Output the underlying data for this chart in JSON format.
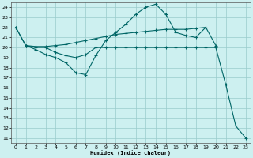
{
  "xlabel": "Humidex (Indice chaleur)",
  "bg_color": "#cdf0f0",
  "grid_color": "#99cccc",
  "line_color": "#006666",
  "xlim": [
    -0.5,
    23.5
  ],
  "ylim": [
    10.5,
    24.5
  ],
  "yticks": [
    11,
    12,
    13,
    14,
    15,
    16,
    17,
    18,
    19,
    20,
    21,
    22,
    23,
    24
  ],
  "xticks": [
    0,
    1,
    2,
    3,
    4,
    5,
    6,
    7,
    8,
    9,
    10,
    11,
    12,
    13,
    14,
    15,
    16,
    17,
    18,
    19,
    20,
    21,
    22,
    23
  ],
  "lines": [
    {
      "x": [
        0,
        1,
        2,
        3,
        4,
        5,
        6,
        7,
        8,
        9,
        10,
        11,
        12,
        13,
        14,
        15,
        16,
        17,
        18,
        19,
        20
      ],
      "y": [
        22,
        20.2,
        19.8,
        19.3,
        19.0,
        18.5,
        17.5,
        17.3,
        19.2,
        20.7,
        21.5,
        22.3,
        23.3,
        24.0,
        24.3,
        23.3,
        21.5,
        21.2,
        21.0,
        22.0,
        20.2
      ]
    },
    {
      "x": [
        0,
        1,
        2,
        3,
        4,
        5,
        6,
        7,
        8,
        9,
        10,
        11,
        12,
        13,
        14,
        15,
        16,
        17,
        18,
        19,
        20,
        21,
        22,
        23
      ],
      "y": [
        22,
        20.2,
        20.0,
        20.0,
        19.5,
        19.2,
        19.0,
        19.3,
        20.0,
        20.0,
        20.0,
        20.0,
        20.0,
        20.0,
        20.0,
        20.0,
        20.0,
        20.0,
        20.0,
        20.0,
        20.0,
        16.3,
        12.2,
        11.0
      ]
    },
    {
      "x": [
        1,
        2,
        3,
        4,
        5,
        6,
        7,
        8,
        9,
        10,
        11,
        12,
        13,
        14,
        15,
        16,
        17,
        18,
        19
      ],
      "y": [
        20.2,
        20.1,
        20.1,
        20.2,
        20.3,
        20.5,
        20.7,
        20.9,
        21.1,
        21.3,
        21.4,
        21.5,
        21.6,
        21.7,
        21.8,
        21.8,
        21.8,
        21.9,
        22.0
      ]
    }
  ]
}
